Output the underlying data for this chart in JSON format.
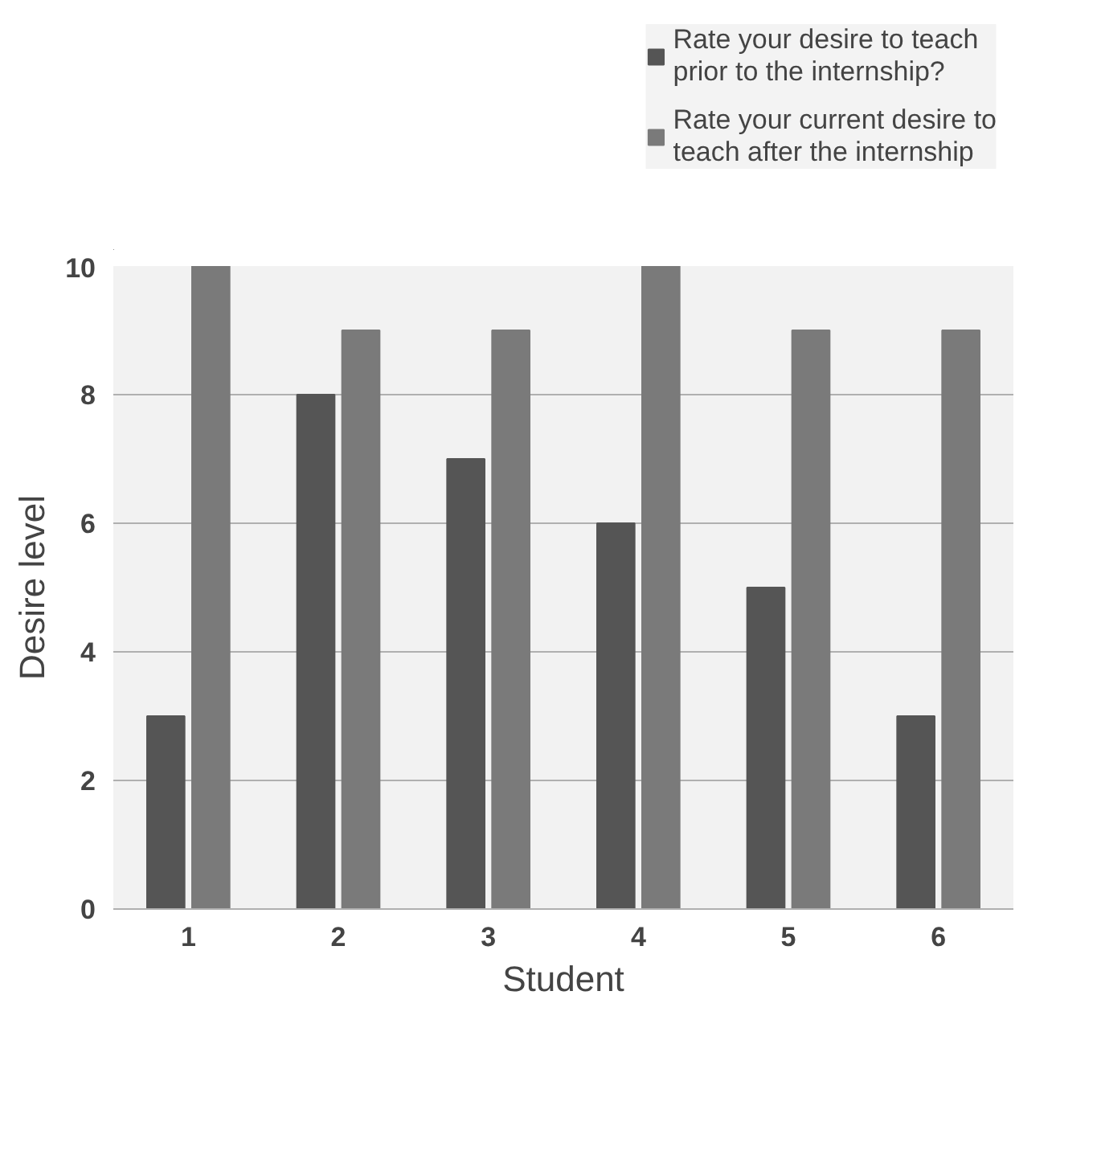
{
  "chart_data": {
    "type": "bar",
    "xlabel": "Student",
    "ylabel": "Desire level",
    "categories": [
      "1",
      "2",
      "3",
      "4",
      "5",
      "6"
    ],
    "series": [
      {
        "name": "Rate your desire to teach prior to the internship?",
        "color": "#555555",
        "values": [
          3,
          8,
          7,
          6,
          5,
          3
        ]
      },
      {
        "name": "Rate your current desire to teach after the internship",
        "color": "#7a7a7a",
        "values": [
          10,
          9,
          9,
          10,
          9,
          9
        ]
      }
    ],
    "ylim": [
      0,
      10
    ],
    "yticks": [
      0,
      2,
      4,
      6,
      8,
      10
    ],
    "grid": "y",
    "legend": "top right"
  }
}
